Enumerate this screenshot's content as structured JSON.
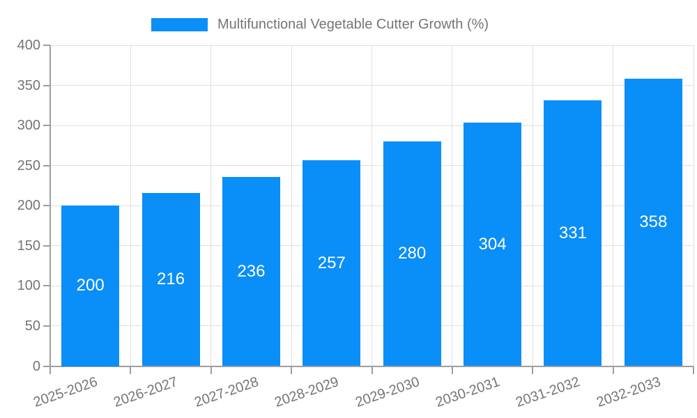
{
  "chart_data": {
    "type": "bar",
    "title": "Multifunctional Vegetable Cutter Growth (%)",
    "categories": [
      "2025-2026",
      "2026-2027",
      "2027-2028",
      "2028-2029",
      "2029-2030",
      "2030-2031",
      "2031-2032",
      "2032-2033"
    ],
    "values": [
      200,
      216,
      236,
      257,
      280,
      304,
      331,
      358
    ],
    "xlabel": "",
    "ylabel": "",
    "ylim": [
      0,
      400
    ],
    "yticks": [
      0,
      50,
      100,
      150,
      200,
      250,
      300,
      350,
      400
    ],
    "grid": true,
    "legend_position": "top",
    "bar_color": "#0a8ef8",
    "value_label_color": "#ffffff",
    "grid_color": "#e0e0e0",
    "axis_color": "#9e9e9e",
    "tick_label_color": "#757575"
  },
  "legend": {
    "label": "Multifunctional Vegetable Cutter Growth (%)",
    "swatch_color": "#0a8ef8"
  }
}
